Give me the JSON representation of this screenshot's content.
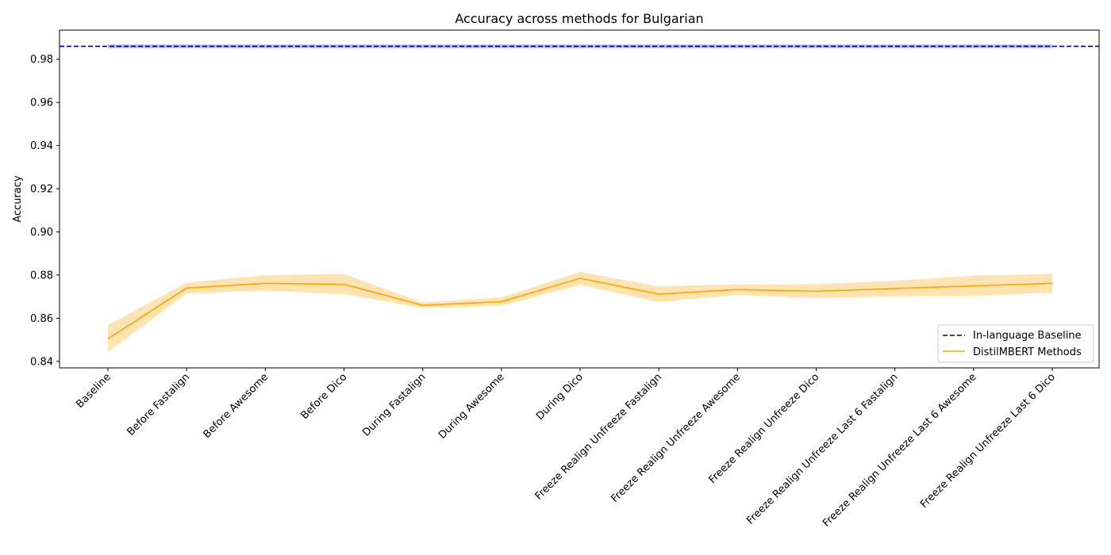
{
  "chart_data": {
    "type": "line",
    "title": "Accuracy across methods for Bulgarian",
    "xlabel": "",
    "ylabel": "Accuracy",
    "ylim": [
      0.837,
      0.9935
    ],
    "yticks": [
      "0.84",
      "0.86",
      "0.88",
      "0.90",
      "0.92",
      "0.94",
      "0.96",
      "0.98"
    ],
    "categories": [
      "Baseline",
      "Before Fastalign",
      "Before Awesome",
      "Before Dico",
      "During Fastalign",
      "During Awesome",
      "During Dico",
      "Freeze Realign Unfreeze Fastalign",
      "Freeze Realign Unfreeze Awesome",
      "Freeze Realign Unfreeze Dico",
      "Freeze Realign Unfreeze Last 6 Fastalign",
      "Freeze Realign Unfreeze Last 6 Awesome",
      "Freeze Realign Unfreeze Last 6 Dico"
    ],
    "series": [
      {
        "name": "DistilMBERT Methods",
        "color": "#ffa500",
        "values": [
          0.8505,
          0.874,
          0.8762,
          0.8757,
          0.866,
          0.8677,
          0.8785,
          0.8712,
          0.8733,
          0.8725,
          0.8738,
          0.875,
          0.8762
        ],
        "lower": [
          0.8445,
          0.8715,
          0.8728,
          0.8712,
          0.8648,
          0.8658,
          0.8755,
          0.8675,
          0.8708,
          0.8693,
          0.8702,
          0.8703,
          0.872
        ],
        "upper": [
          0.8568,
          0.8765,
          0.88,
          0.8805,
          0.8673,
          0.8697,
          0.8815,
          0.8748,
          0.8758,
          0.8758,
          0.8773,
          0.8798,
          0.8805
        ]
      },
      {
        "name": "In-language Baseline",
        "color": "#00008b",
        "style": "dashed",
        "constant": 0.986,
        "band": [
          0.9852,
          0.9868
        ],
        "band_color": "#0000ff"
      }
    ],
    "legend": {
      "position": "lower-right",
      "entries": [
        "In-language Baseline",
        "DistilMBERT Methods"
      ]
    },
    "grid": false
  }
}
